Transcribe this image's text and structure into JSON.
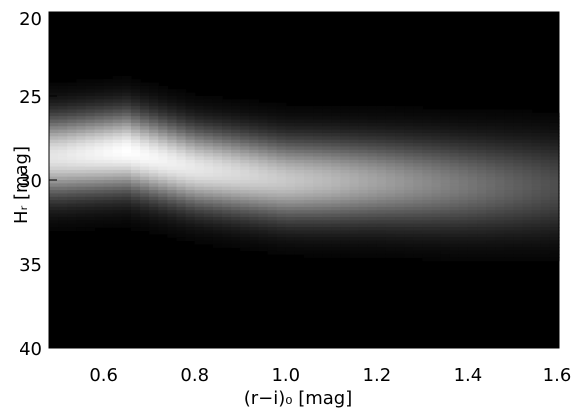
{
  "chart_data": {
    "type": "heatmap",
    "title": "",
    "xlabel": "(r−i)₀ [mag]",
    "ylabel": "Hᵣ [mag]",
    "xlim": [
      0.48,
      1.6
    ],
    "ylim": [
      40,
      20
    ],
    "y_axis_inverted": true,
    "x_ticks": [
      "0.6",
      "0.8",
      "1.0",
      "1.2",
      "1.4",
      "1.6"
    ],
    "y_ticks": [
      "20",
      "25",
      "30",
      "35",
      "40"
    ],
    "colormap": "grayscale (black = low density, white = high density)",
    "density_ridge": [
      {
        "x": 0.5,
        "y": 28.6
      },
      {
        "x": 0.65,
        "y": 28.3
      },
      {
        "x": 0.8,
        "y": 29.3
      },
      {
        "x": 1.0,
        "y": 30.0
      },
      {
        "x": 1.2,
        "y": 30.1
      },
      {
        "x": 1.4,
        "y": 30.3
      },
      {
        "x": 1.6,
        "y": 30.4
      }
    ],
    "density_spread": [
      {
        "x": 0.5,
        "sigma": 1.6
      },
      {
        "x": 0.8,
        "sigma": 1.6
      },
      {
        "x": 1.2,
        "sigma": 1.7
      },
      {
        "x": 1.6,
        "sigma": 1.9
      }
    ],
    "peak_intensity": [
      {
        "x": 0.5,
        "value": 0.9
      },
      {
        "x": 0.65,
        "value": 1.0
      },
      {
        "x": 0.9,
        "value": 0.85
      },
      {
        "x": 1.1,
        "value": 0.72
      },
      {
        "x": 1.3,
        "value": 0.55
      },
      {
        "x": 1.5,
        "value": 0.38
      },
      {
        "x": 1.6,
        "value": 0.3
      }
    ],
    "grid": false,
    "legend": "none"
  }
}
